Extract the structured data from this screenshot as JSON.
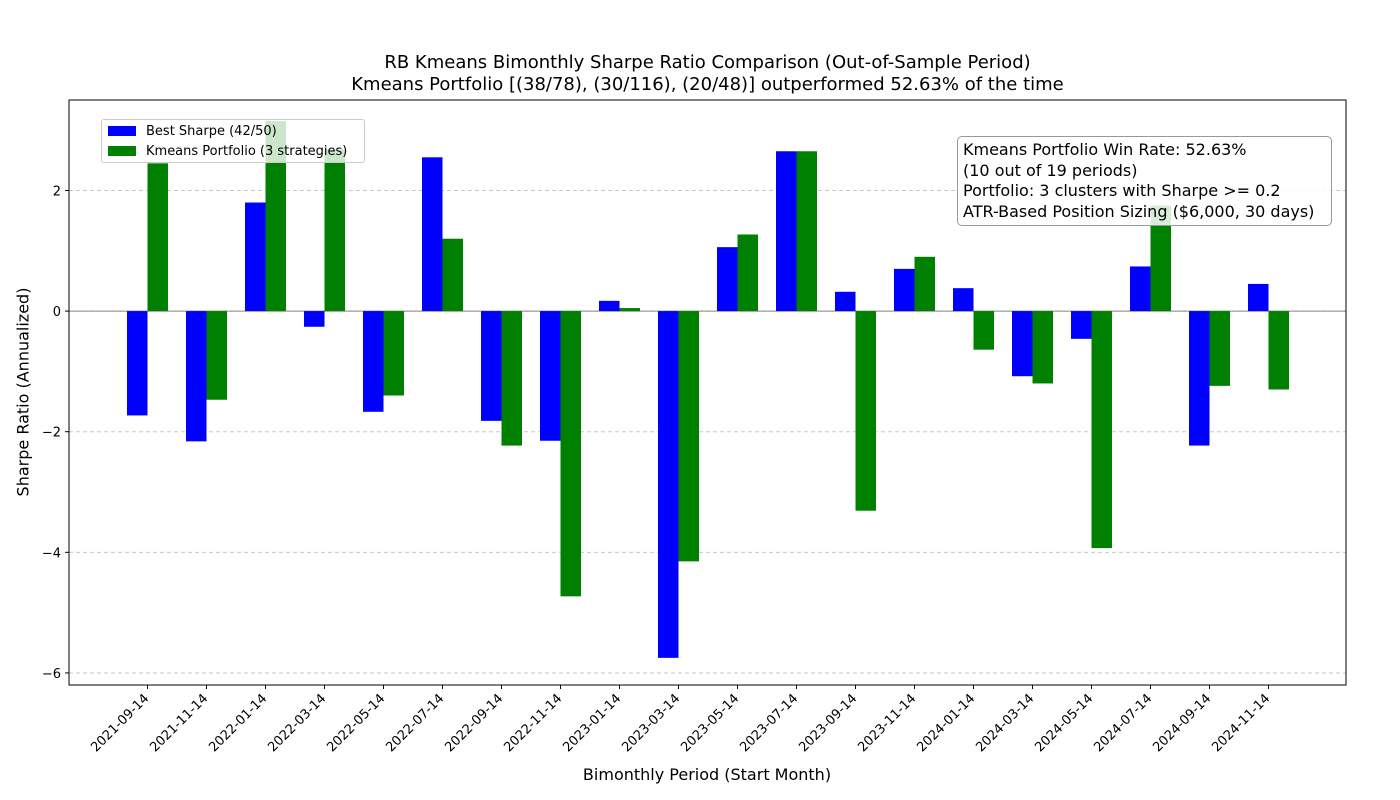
{
  "chart_data": {
    "type": "bar",
    "title": "RB Kmeans Bimonthly Sharpe Ratio Comparison (Out-of-Sample Period)",
    "subtitle": "Kmeans Portfolio [(38/78), (30/116), (20/48)] outperformed 52.63% of the time",
    "xlabel": "Bimonthly Period (Start Month)",
    "ylabel": "Sharpe Ratio (Annualized)",
    "ylim": [
      -6.2,
      3.5
    ],
    "yticks": [
      -6,
      -4,
      -2,
      0,
      2
    ],
    "ytick_labels": [
      "−6",
      "−4",
      "−2",
      "0",
      "2"
    ],
    "grid": "y-dashed",
    "legend_position": "top-left",
    "categories": [
      "2021-09-14",
      "2021-11-14",
      "2022-01-14",
      "2022-03-14",
      "2022-05-14",
      "2022-07-14",
      "2022-09-14",
      "2022-11-14",
      "2023-01-14",
      "2023-03-14",
      "2023-05-14",
      "2023-07-14",
      "2023-09-14",
      "2023-11-14",
      "2024-01-14",
      "2024-03-14",
      "2024-05-14",
      "2024-07-14",
      "2024-09-14",
      "2024-11-14"
    ],
    "series": [
      {
        "name": "Best Sharpe (42/50)",
        "color": "#0000ff",
        "values": [
          -1.73,
          -2.16,
          1.8,
          -0.26,
          -1.67,
          2.55,
          -1.82,
          -2.15,
          0.17,
          -5.75,
          1.06,
          2.65,
          0.32,
          0.7,
          0.38,
          -1.08,
          -0.46,
          0.74,
          -2.23,
          0.45
        ]
      },
      {
        "name": "Kmeans Portfolio (3 strategies)",
        "color": "#008000",
        "values": [
          2.45,
          -1.47,
          3.15,
          2.68,
          -1.4,
          1.2,
          -2.23,
          -4.73,
          0.05,
          -4.15,
          1.27,
          2.65,
          -3.31,
          0.9,
          -0.64,
          -1.2,
          -3.93,
          1.75,
          -1.24,
          -1.3
        ]
      }
    ],
    "annotation": [
      "Kmeans Portfolio Win Rate: 52.63%",
      "(10 out of 19 periods)",
      "Portfolio: 3 clusters with Sharpe >= 0.2",
      "ATR-Based Position Sizing ($6,000, 30 days)"
    ]
  }
}
